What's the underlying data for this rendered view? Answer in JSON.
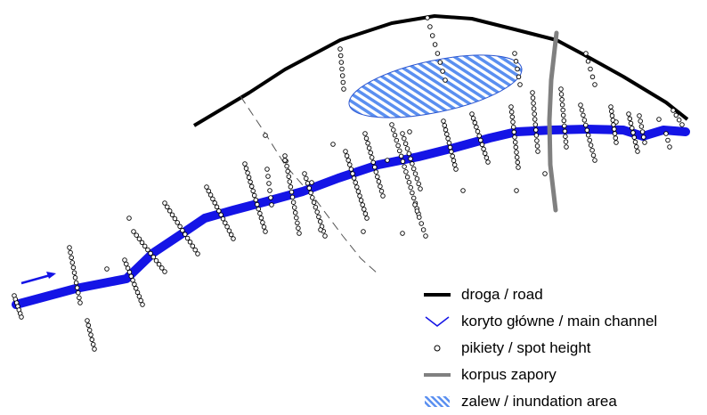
{
  "colors": {
    "road": "#000000",
    "channel": "#1414e6",
    "spot_height_fill": "#ffffff",
    "spot_height_stroke": "#000000",
    "dam": "#808080",
    "inundation_fill": "#5a8ff0",
    "inundation_stroke": "#2a55d0",
    "boundary": "#555555"
  },
  "legend": {
    "items": [
      {
        "key": "road",
        "label": "droga / road",
        "icon": "thick-black-line"
      },
      {
        "key": "channel",
        "label": "koryto główne / main channel",
        "icon": "blue-chevron-line"
      },
      {
        "key": "spot_height",
        "label": "pikiety / spot height",
        "icon": "small-circle"
      },
      {
        "key": "dam",
        "label": "korpus zapory",
        "icon": "thick-gray-line"
      },
      {
        "key": "inundation",
        "label": "zalew / inundation area",
        "icon": "hatched-rectangle"
      }
    ]
  },
  "flow_arrow": {
    "icon": "flow-direction-arrow"
  }
}
